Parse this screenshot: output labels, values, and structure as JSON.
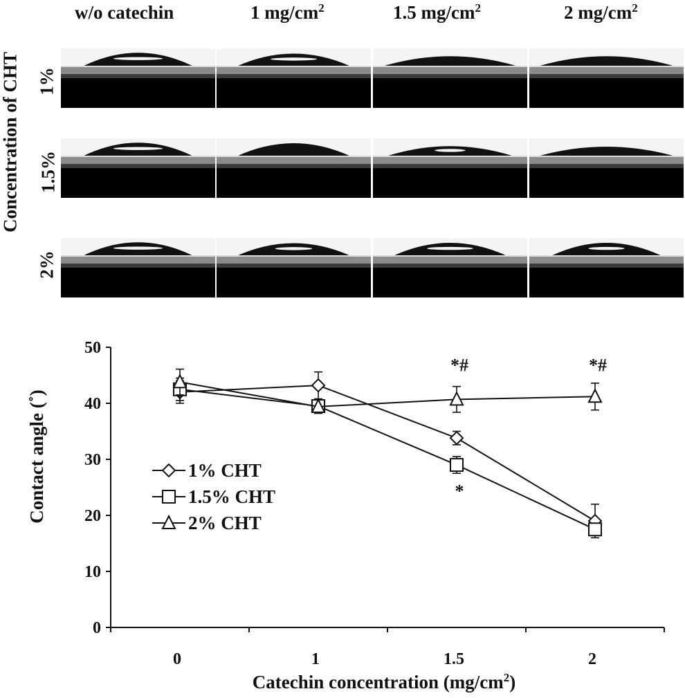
{
  "images": {
    "columns": [
      {
        "label": "w/o catechin",
        "sup": ""
      },
      {
        "label": "1 mg/cm",
        "sup": "2"
      },
      {
        "label": "1.5 mg/cm",
        "sup": "2"
      },
      {
        "label": "2 mg/cm",
        "sup": "2"
      }
    ],
    "row_group_label": "Concentration of CHT",
    "rows": [
      "1%",
      "1.5%",
      "2%"
    ],
    "drops": [
      [
        {
          "w": 0.7,
          "h": 0.75,
          "glare": 0.55
        },
        {
          "w": 0.72,
          "h": 0.7,
          "glare": 0.5
        },
        {
          "w": 0.85,
          "h": 0.55,
          "glare": 0.0
        },
        {
          "w": 0.86,
          "h": 0.55,
          "glare": 0.0
        }
      ],
      [
        {
          "w": 0.7,
          "h": 0.75,
          "glare": 0.55
        },
        {
          "w": 0.72,
          "h": 0.72,
          "glare": 0.0
        },
        {
          "w": 0.8,
          "h": 0.55,
          "glare": 0.3
        },
        {
          "w": 0.86,
          "h": 0.52,
          "glare": 0.0
        }
      ],
      [
        {
          "w": 0.7,
          "h": 0.75,
          "glare": 0.55
        },
        {
          "w": 0.72,
          "h": 0.7,
          "glare": 0.4
        },
        {
          "w": 0.72,
          "h": 0.72,
          "glare": 0.5
        },
        {
          "w": 0.7,
          "h": 0.72,
          "glare": 0.4
        }
      ]
    ]
  },
  "chart_data": {
    "type": "line",
    "categories": [
      "0",
      "1",
      "1.5",
      "2"
    ],
    "xlabel": "Catechin concentration (mg/cm",
    "xlabel_sup": "2",
    "xlabel_end": ")",
    "ylabel": "Contact angle (˚)",
    "ylim": [
      0,
      50
    ],
    "yticks": [
      "0",
      "10",
      "20",
      "30",
      "40",
      "50"
    ],
    "grid": false,
    "legend_position": "middle-left",
    "series": [
      {
        "name": "1% CHT",
        "marker": "diamond",
        "values": [
          42.0,
          43.2,
          33.8,
          19.0
        ],
        "errors": [
          2.0,
          2.4,
          1.2,
          3.0
        ]
      },
      {
        "name": "1.5% CHT",
        "marker": "square",
        "values": [
          42.5,
          39.5,
          29.0,
          17.5
        ],
        "errors": [
          2.0,
          1.2,
          1.5,
          1.0
        ]
      },
      {
        "name": "2% CHT",
        "marker": "triangle",
        "values": [
          43.8,
          39.4,
          40.7,
          41.2
        ],
        "errors": [
          2.3,
          1.2,
          2.3,
          2.4
        ]
      }
    ],
    "annotations": [
      {
        "text": "*#",
        "category": 2,
        "value": 47.0
      },
      {
        "text": "*#",
        "category": 3,
        "value": 47.0
      },
      {
        "text": "*",
        "category": 2,
        "value": 24.5
      }
    ]
  }
}
